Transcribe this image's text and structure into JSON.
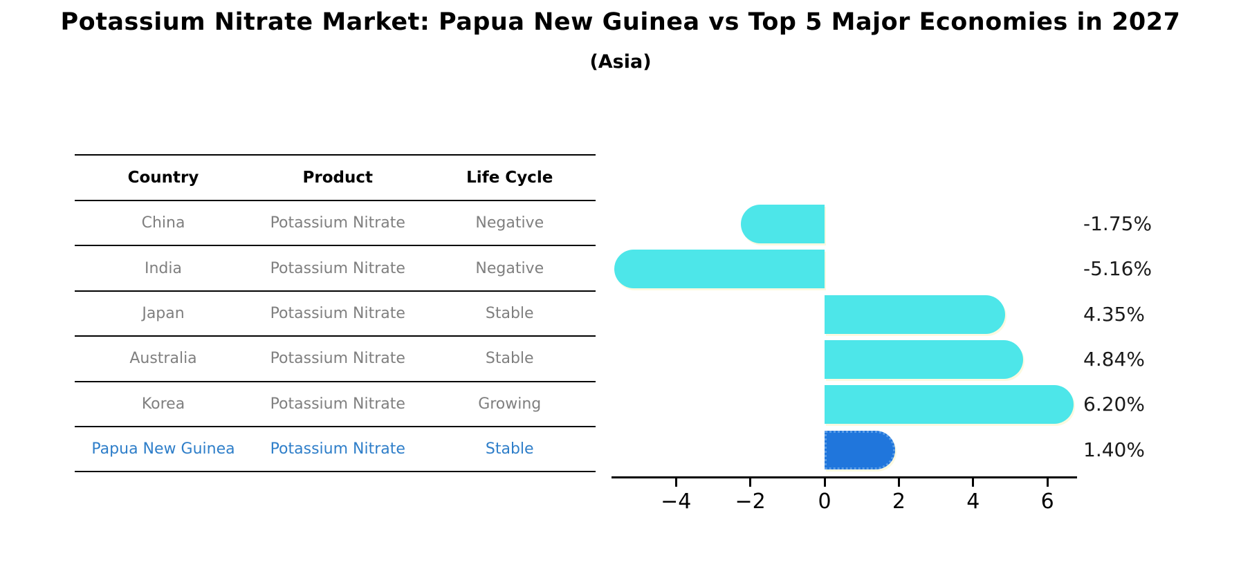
{
  "title": "Potassium Nitrate Market: Papua New Guinea vs Top 5 Major Economies in 2027",
  "subtitle": "(Asia)",
  "table": {
    "headers": [
      "Country",
      "Product",
      "Life Cycle"
    ],
    "rows": [
      {
        "country": "China",
        "product": "Potassium Nitrate",
        "life_cycle": "Negative",
        "highlight": false
      },
      {
        "country": "India",
        "product": "Potassium Nitrate",
        "life_cycle": "Negative",
        "highlight": false
      },
      {
        "country": "Japan",
        "product": "Potassium Nitrate",
        "life_cycle": "Stable",
        "highlight": false
      },
      {
        "country": "Australia",
        "product": "Potassium Nitrate",
        "life_cycle": "Stable",
        "highlight": false
      },
      {
        "country": "Korea",
        "product": "Potassium Nitrate",
        "life_cycle": "Growing",
        "highlight": false
      },
      {
        "country": "Papua New Guinea",
        "product": "Potassium Nitrate",
        "life_cycle": "Stable",
        "highlight": true
      }
    ]
  },
  "chart_data": {
    "type": "bar",
    "orientation": "horizontal",
    "title": "Potassium Nitrate Market: Papua New Guinea vs Top 5 Major Economies in 2027",
    "subtitle": "(Asia)",
    "categories": [
      "China",
      "India",
      "Japan",
      "Australia",
      "Korea",
      "Papua New Guinea"
    ],
    "values": [
      -1.75,
      -5.16,
      4.35,
      4.84,
      6.2,
      1.4
    ],
    "value_labels": [
      "-1.75%",
      "-5.16%",
      "4.35%",
      "4.84%",
      "6.20%",
      "1.40%"
    ],
    "x_tick_values": [
      -4,
      -2,
      0,
      2,
      4,
      6
    ],
    "x_tick_labels": [
      "−4",
      "−2",
      "0",
      "2",
      "4",
      "6"
    ],
    "xlim": [
      -5.74,
      6.8
    ],
    "grid": false,
    "legend": "none",
    "bar_color": "#4de6e9",
    "highlight_bar_color": "#2076dc",
    "highlight_index": 5
  },
  "colors": {
    "background": "#ffffff",
    "title_text": "#000000",
    "table_header_text": "#000000",
    "table_row_text": "#7f7f7f",
    "highlight_text": "#2e7ec9",
    "bar": "#4de6e9",
    "highlight_bar": "#2076dc",
    "axis": "#000000"
  }
}
